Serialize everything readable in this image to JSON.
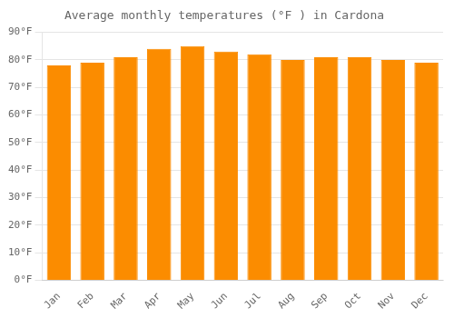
{
  "chart_data": {
    "type": "bar",
    "title": "Average monthly temperatures (°F ) in Cardona",
    "categories": [
      "Jan",
      "Feb",
      "Mar",
      "Apr",
      "May",
      "Jun",
      "Jul",
      "Aug",
      "Sep",
      "Oct",
      "Nov",
      "Dec"
    ],
    "values": [
      78,
      79,
      81,
      84,
      85,
      83,
      82,
      80,
      81,
      81,
      80,
      79
    ],
    "color": "#FB8C00",
    "ylim": [
      0,
      90
    ],
    "yticks": [
      {
        "value": 0,
        "label": "0°F"
      },
      {
        "value": 10,
        "label": "10°F"
      },
      {
        "value": 20,
        "label": "20°F"
      },
      {
        "value": 30,
        "label": "30°F"
      },
      {
        "value": 40,
        "label": "40°F"
      },
      {
        "value": 50,
        "label": "50°F"
      },
      {
        "value": 60,
        "label": "60°F"
      },
      {
        "value": 70,
        "label": "70°F"
      },
      {
        "value": 80,
        "label": "80°F"
      },
      {
        "value": 90,
        "label": "90°F"
      }
    ],
    "grid": true
  }
}
